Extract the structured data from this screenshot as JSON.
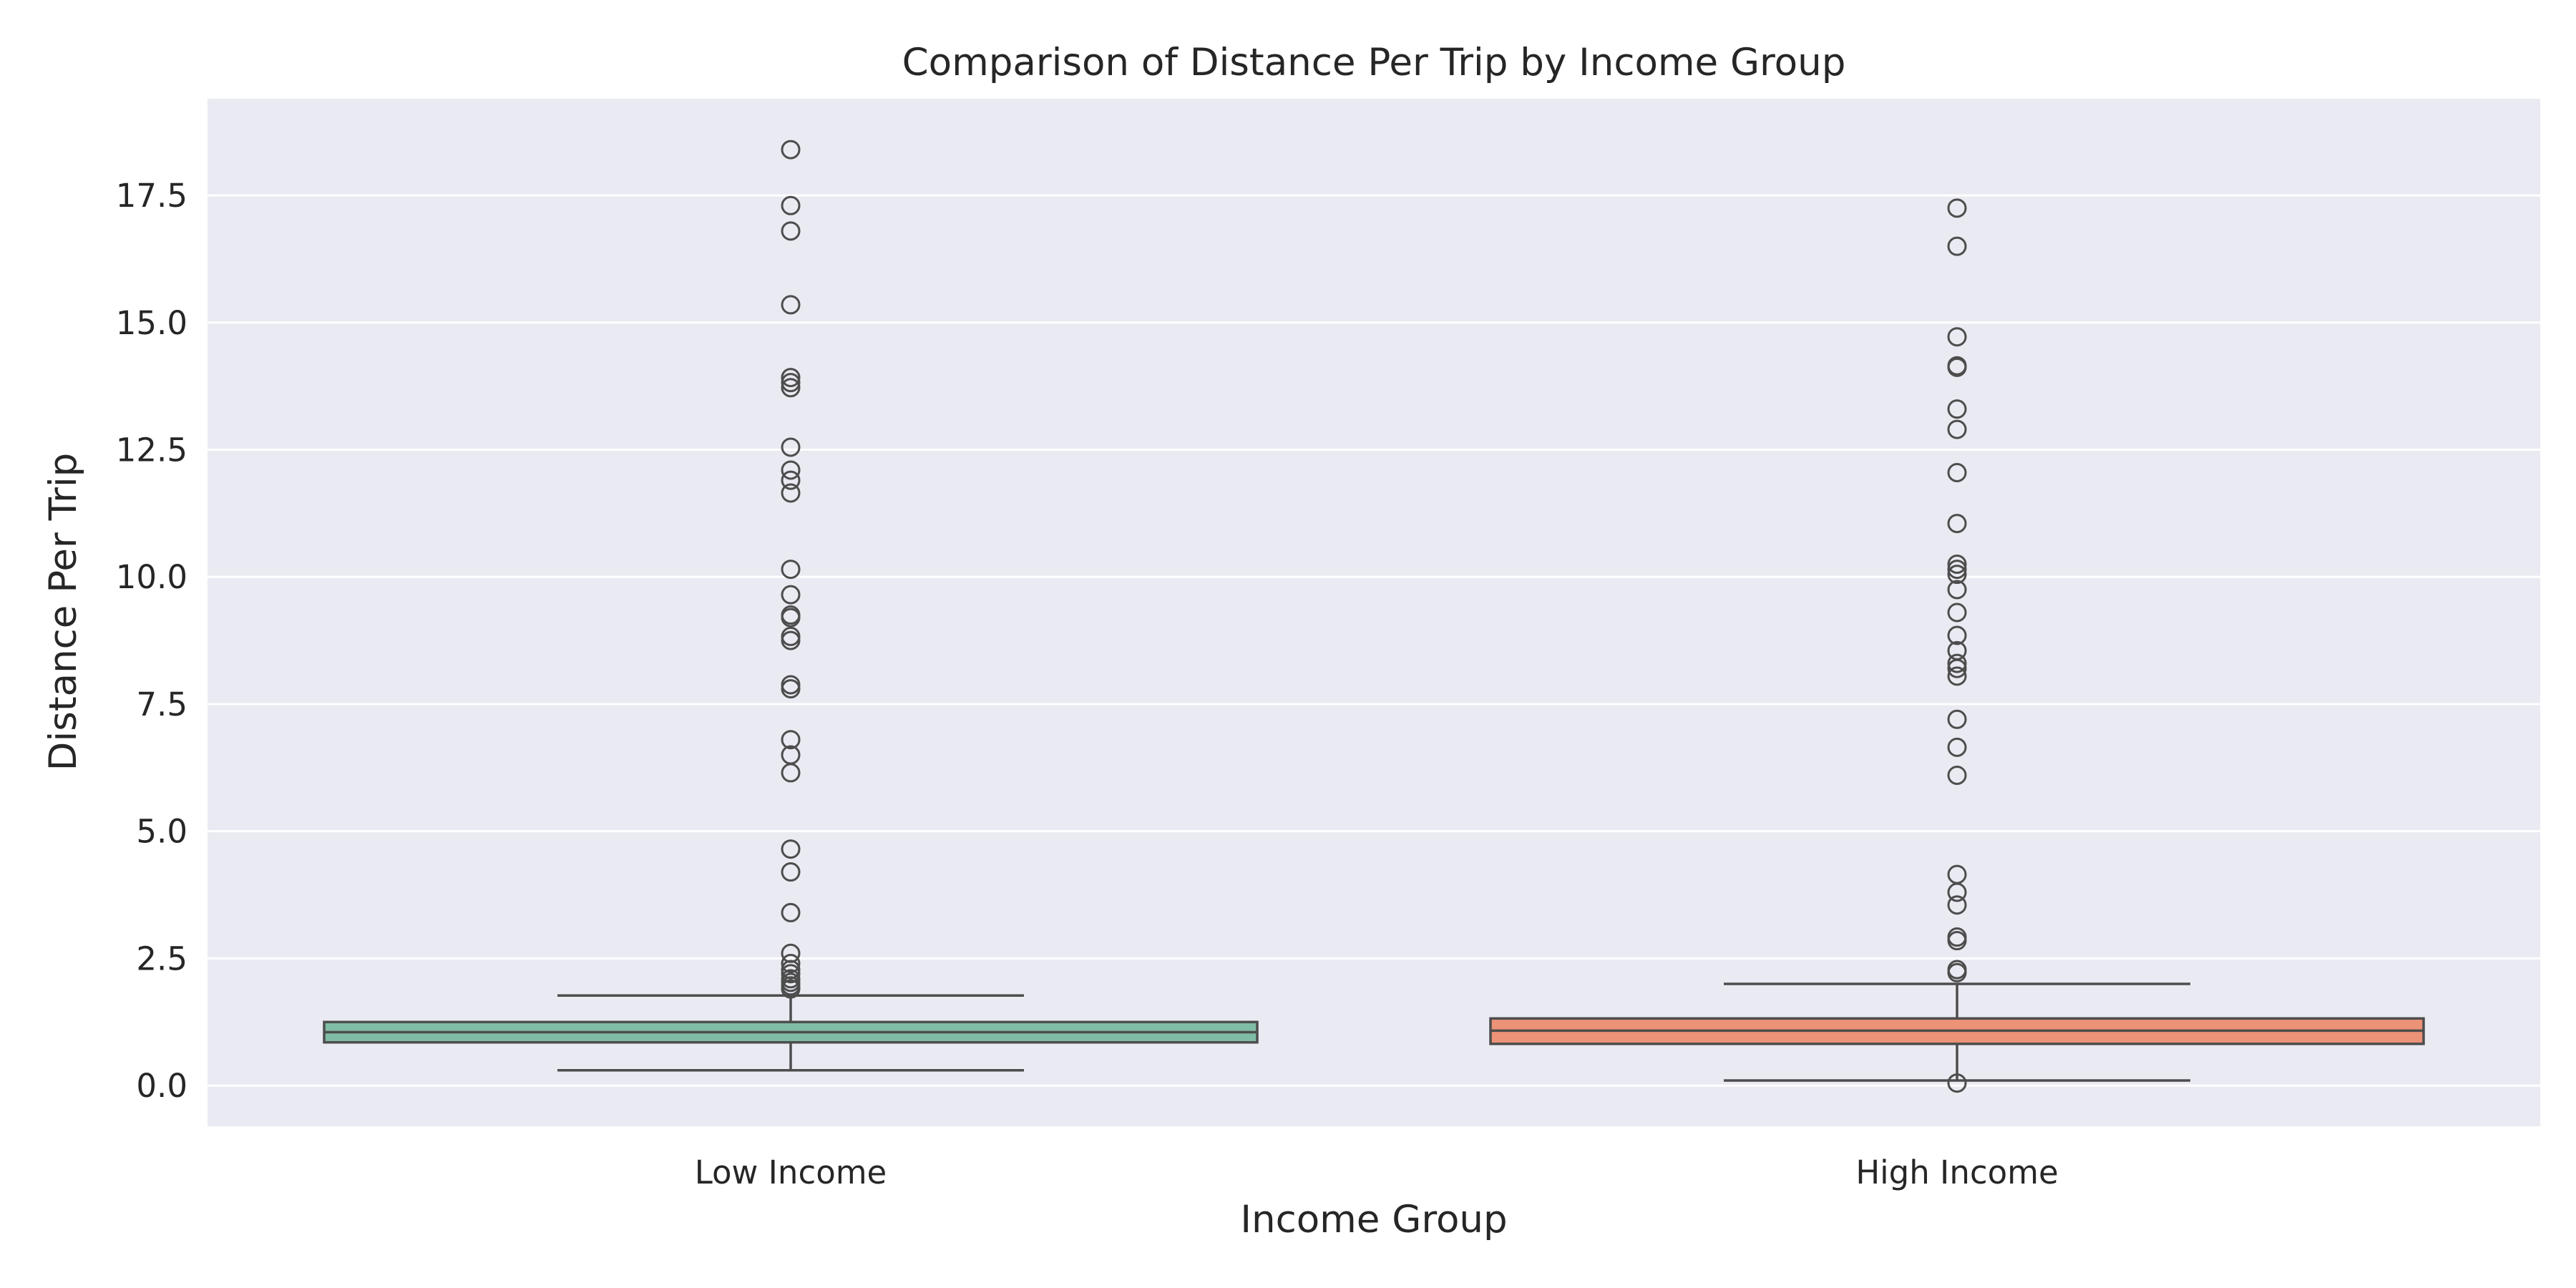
{
  "chart_data": {
    "type": "box",
    "title": "Comparison of Distance Per Trip by Income Group",
    "xlabel": "Income Group",
    "ylabel": "Distance Per Trip",
    "ylim": [
      -0.8,
      19.4
    ],
    "yticks": [
      "0.0",
      "2.5",
      "5.0",
      "7.5",
      "10.0",
      "12.5",
      "15.0",
      "17.5"
    ],
    "grid": true,
    "colors": {
      "background": "#EAEAF2",
      "grid": "#FFFFFF",
      "line": "#4D4D4D",
      "low_income": "#7FBCA6",
      "high_income": "#EC9276"
    },
    "categories": [
      "Low Income",
      "High Income"
    ],
    "boxes": [
      {
        "category": "Low Income",
        "color": "#7FBCA6",
        "whisker_low": 0.3,
        "q1": 0.85,
        "median": 1.05,
        "q3": 1.25,
        "whisker_high": 1.77,
        "outliers": [
          1.9,
          1.96,
          2.03,
          2.1,
          2.2,
          2.28,
          2.4,
          2.6,
          3.4,
          4.2,
          4.65,
          6.15,
          6.5,
          6.8,
          7.8,
          7.88,
          8.75,
          8.83,
          9.2,
          9.25,
          9.65,
          10.15,
          11.65,
          11.9,
          12.1,
          12.55,
          13.72,
          13.82,
          13.92,
          15.35,
          16.8,
          17.3,
          18.4
        ]
      },
      {
        "category": "High Income",
        "color": "#EC9276",
        "whisker_low": 0.1,
        "q1": 0.82,
        "median": 1.08,
        "q3": 1.32,
        "whisker_high": 2.0,
        "outliers": [
          0.05,
          2.22,
          2.28,
          2.85,
          2.92,
          3.55,
          3.8,
          4.15,
          6.1,
          6.65,
          7.2,
          8.05,
          8.2,
          8.3,
          8.55,
          8.85,
          9.3,
          9.75,
          10.05,
          10.15,
          10.25,
          11.05,
          12.05,
          12.9,
          13.3,
          14.12,
          14.15,
          14.72,
          16.5,
          17.25
        ]
      }
    ]
  }
}
